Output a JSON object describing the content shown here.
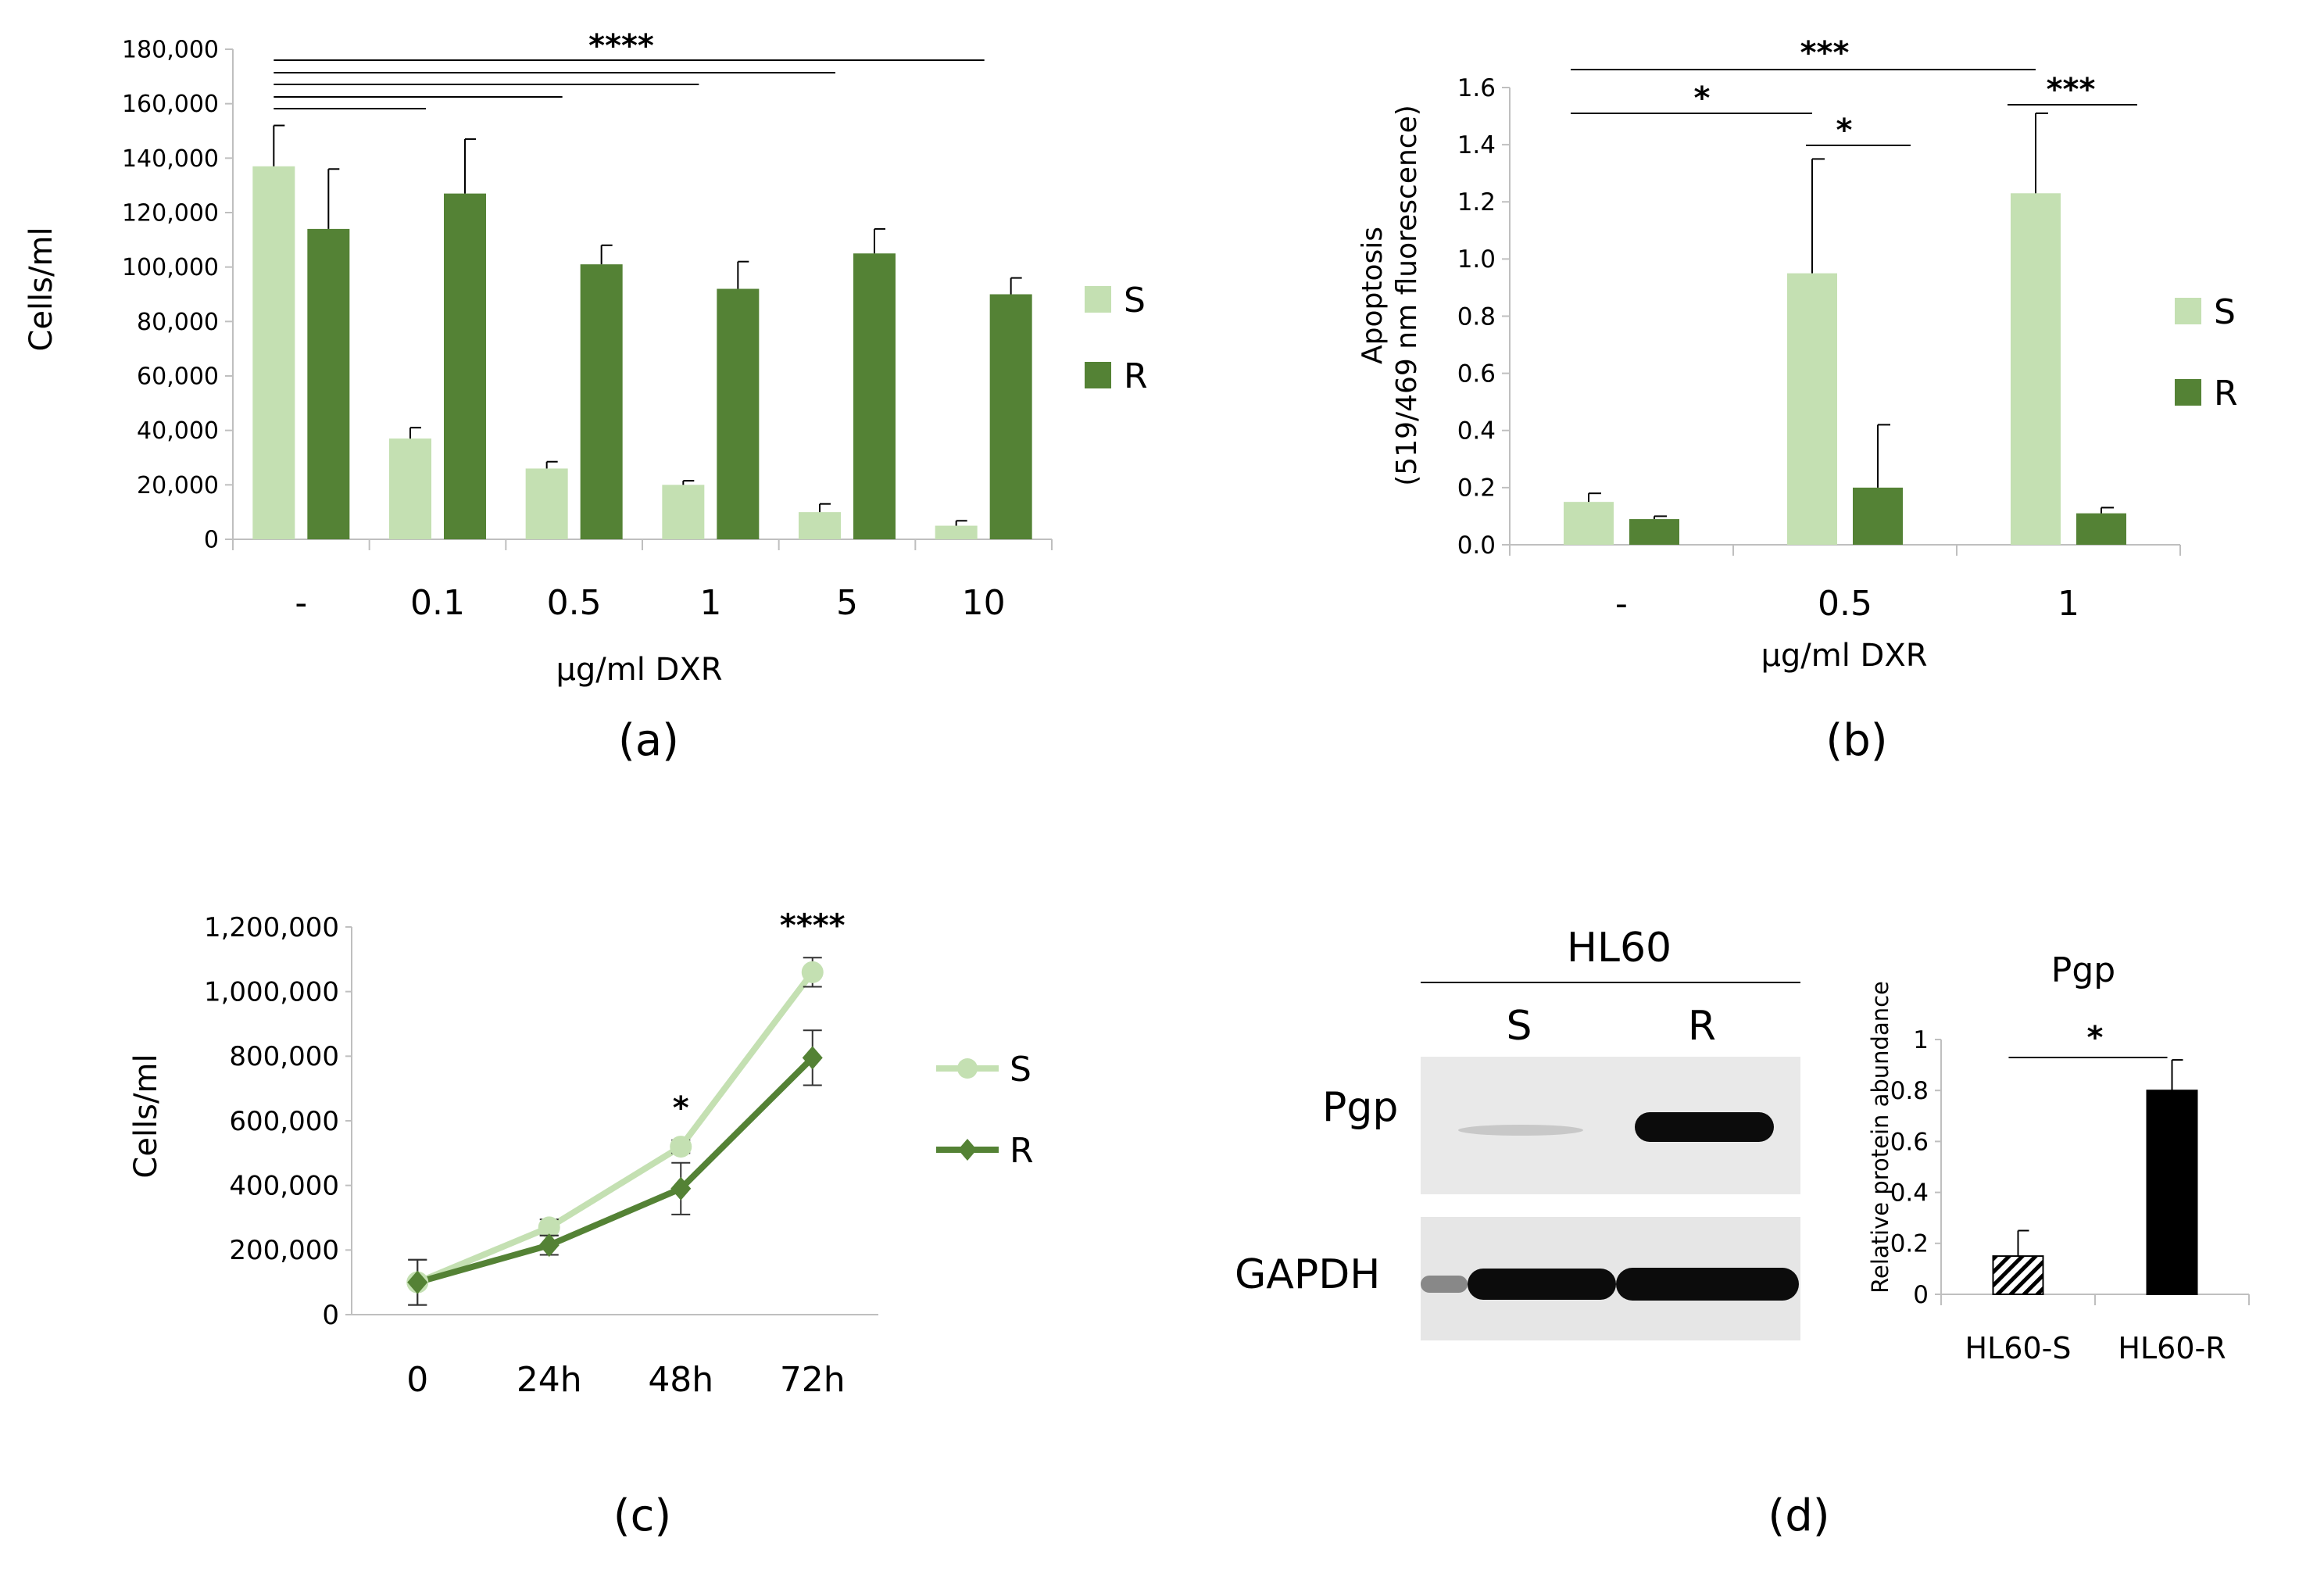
{
  "colors": {
    "S": "#c4e0b2",
    "R": "#548235",
    "axis": "#bfbfbf",
    "ink": "#000000",
    "blot_bg": "#e9e9e9",
    "band": "#0c0c0c"
  },
  "panels": {
    "a": {
      "letter": "(a)"
    },
    "b": {
      "letter": "(b)"
    },
    "c": {
      "letter": "(c)"
    },
    "d": {
      "letter": "(d)"
    }
  },
  "chart_data": [
    {
      "id": "a",
      "type": "bar",
      "title": "",
      "xlabel": "µg/ml DXR",
      "ylabel": "Cells/ml",
      "categories": [
        "-",
        "0.1",
        "0.5",
        "1",
        "5",
        "10"
      ],
      "ylim": [
        0,
        180000
      ],
      "yticks": [
        0,
        20000,
        40000,
        60000,
        80000,
        100000,
        120000,
        140000,
        160000,
        180000
      ],
      "ytick_labels": [
        "0",
        "20,000",
        "40,000",
        "60,000",
        "80,000",
        "100,000",
        "120,000",
        "140,000",
        "160,000",
        "180,000"
      ],
      "series": [
        {
          "name": "S",
          "values": [
            137000,
            37000,
            26000,
            20000,
            10000,
            5000
          ],
          "errors": [
            15000,
            4000,
            2500,
            1500,
            3000,
            1800
          ]
        },
        {
          "name": "R",
          "values": [
            114000,
            127000,
            101000,
            92000,
            105000,
            90000
          ],
          "errors": [
            22000,
            20000,
            7000,
            10000,
            9000,
            6000
          ]
        }
      ],
      "legend": {
        "position": "right",
        "entries": [
          "S",
          "R"
        ]
      },
      "significance": {
        "label": "****",
        "note": "control S vs every S treatment"
      }
    },
    {
      "id": "b",
      "type": "bar",
      "title": "",
      "xlabel": "µg/ml DXR",
      "ylabel_line1": "Apoptosis",
      "ylabel_line2": "(519/469 nm fluorescence)",
      "categories": [
        "-",
        "0.5",
        "1"
      ],
      "ylim": [
        0,
        1.6
      ],
      "yticks": [
        0,
        0.2,
        0.4,
        0.6,
        0.8,
        1.0,
        1.2,
        1.4,
        1.6
      ],
      "ytick_labels": [
        "0.0",
        "0.2",
        "0.4",
        "0.6",
        "0.8",
        "1.0",
        "1.2",
        "1.4",
        "1.6"
      ],
      "series": [
        {
          "name": "S",
          "values": [
            0.15,
            0.95,
            1.23
          ],
          "errors": [
            0.03,
            0.4,
            0.28
          ]
        },
        {
          "name": "R",
          "values": [
            0.09,
            0.2,
            0.11
          ],
          "errors": [
            0.01,
            0.22,
            0.02
          ]
        }
      ],
      "legend": {
        "position": "right",
        "entries": [
          "S",
          "R"
        ]
      },
      "significance": [
        {
          "label": "***",
          "compare": "- S vs 1 S"
        },
        {
          "label": "*",
          "compare": "- S vs 0.5 S"
        },
        {
          "label": "*",
          "compare": "0.5 S vs 0.5 R"
        },
        {
          "label": "***",
          "compare": "1 S vs 1 R"
        }
      ]
    },
    {
      "id": "c",
      "type": "line",
      "title": "",
      "xlabel": "",
      "ylabel": "Cells/ml",
      "categories": [
        "0",
        "24h",
        "48h",
        "72h"
      ],
      "ylim": [
        0,
        1200000
      ],
      "yticks": [
        0,
        200000,
        400000,
        600000,
        800000,
        1000000,
        1200000
      ],
      "ytick_labels": [
        "0",
        "200,000",
        "400,000",
        "600,000",
        "800,000",
        "1,000,000",
        "1,200,000"
      ],
      "series": [
        {
          "name": "S",
          "marker": "circle",
          "values": [
            100000,
            270000,
            520000,
            1060000
          ],
          "errors": [
            70000,
            25000,
            20000,
            45000
          ]
        },
        {
          "name": "R",
          "marker": "diamond",
          "values": [
            100000,
            215000,
            390000,
            795000
          ],
          "errors": [
            70000,
            30000,
            80000,
            85000
          ]
        }
      ],
      "legend": {
        "position": "right",
        "entries": [
          "S",
          "R"
        ]
      },
      "significance": [
        {
          "label": "*",
          "category": "48h"
        },
        {
          "label": "****",
          "category": "72h"
        }
      ]
    },
    {
      "id": "d",
      "type": "bar",
      "title": "Pgp",
      "xlabel": "",
      "ylabel": "Relative protein abundance",
      "categories": [
        "HL60-S",
        "HL60-R"
      ],
      "ylim": [
        0,
        1
      ],
      "yticks": [
        0,
        0.2,
        0.4,
        0.6,
        0.8,
        1
      ],
      "ytick_labels": [
        "0",
        "0.2",
        "0.4",
        "0.6",
        "0.8",
        "1"
      ],
      "series": [
        {
          "name": "Pgp",
          "values": [
            0.15,
            0.8
          ],
          "errors": [
            0.1,
            0.12
          ],
          "fills": [
            "hatched",
            "black"
          ]
        }
      ],
      "significance": {
        "label": "*",
        "compare": "HL60-S vs HL60-R"
      }
    }
  ],
  "blot": {
    "cell_line": "HL60",
    "lanes": [
      "S",
      "R"
    ],
    "rows": [
      {
        "label": "Pgp",
        "intensity": [
          0.05,
          1.0
        ]
      },
      {
        "label": "GAPDH",
        "intensity": [
          1.0,
          1.0
        ]
      }
    ]
  }
}
